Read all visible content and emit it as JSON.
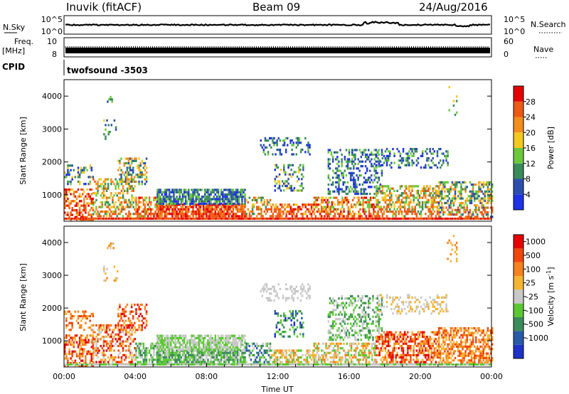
{
  "header": {
    "station": "Inuvik (fitACF)",
    "beam": "Beam 09",
    "date": "24/Aug/2016"
  },
  "strips": {
    "nsky_label": "N.Sky",
    "nsky_ticks": [
      "10^5",
      "10^0"
    ],
    "nsearch_label": "N.Search",
    "nsearch_ticks": [
      "10^5",
      "10^0"
    ],
    "freq_label": "Freq.",
    "freq_unit": "[MHz]",
    "freq_ticks": [
      "10",
      "8"
    ],
    "nave_label": "Nave",
    "nave_ticks": [
      "60",
      "0"
    ],
    "cpid_label": "CPID",
    "cpid_value": "twofsound -3503"
  },
  "colors": {
    "power_scale": [
      "#1e32e6",
      "#2c4fae",
      "#3a8a5a",
      "#6bc83c",
      "#f4c81e",
      "#f48c1e",
      "#ec5a14",
      "#e60000"
    ],
    "velocity_scale": [
      "#e60000",
      "#f0460a",
      "#f5821e",
      "#f5b432",
      "#c8c8c8",
      "#5ac832",
      "#3c8c5a",
      "#285aaa",
      "#1e32c8"
    ]
  },
  "chart_data": [
    {
      "type": "heatmap",
      "name": "power-panel",
      "xlabel": "",
      "ylabel": "Slant Range [km]",
      "ylim": [
        200,
        4500
      ],
      "xlim": [
        "00:00",
        "24:00"
      ],
      "y_ticks": [
        "1000",
        "2000",
        "3000",
        "4000"
      ],
      "colorbar_label": "Power [dB]",
      "colorbar_ticks": [
        "4",
        "8",
        "12",
        "16",
        "20",
        "24",
        "28"
      ],
      "colorbar_range": [
        0,
        32
      ]
    },
    {
      "type": "heatmap",
      "name": "velocity-panel",
      "xlabel": "Time UT",
      "ylabel": "Slant Range [km]",
      "ylim": [
        200,
        4500
      ],
      "xlim": [
        "00:00",
        "24:00"
      ],
      "x_ticks": [
        "00:00",
        "04:00",
        "08:00",
        "12:00",
        "16:00",
        "20:00",
        "00:00"
      ],
      "y_ticks": [
        "1000",
        "2000",
        "3000",
        "4000"
      ],
      "colorbar_label": "Velocity [m s",
      "colorbar_label_sup": "-1",
      "colorbar_label_end": "]",
      "colorbar_ticks": [
        "1000",
        "500",
        "100",
        "25",
        "-25",
        "-100",
        "-500",
        "-1000"
      ]
    }
  ]
}
